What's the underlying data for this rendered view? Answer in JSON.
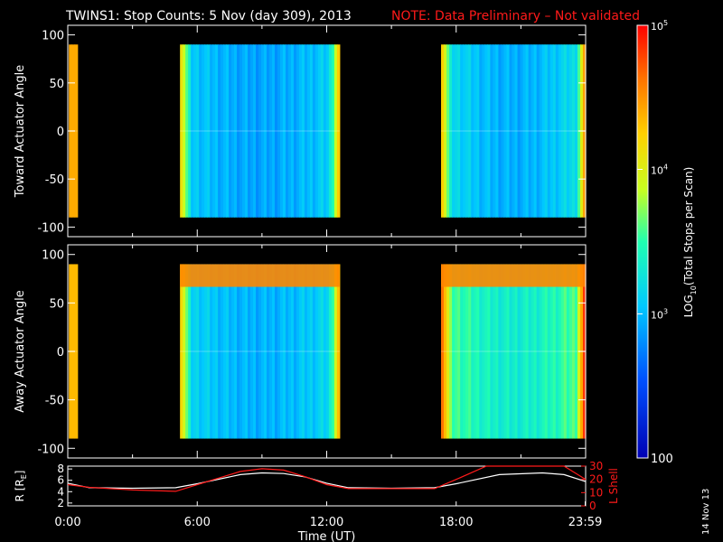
{
  "title": {
    "main": "TWINS1: Stop Counts:  5 Nov (day 309), 2013",
    "note": "NOTE: Data Preliminary – Not validated",
    "note_color": "#ff1a1a"
  },
  "stamp": "14 Nov 13",
  "chart_data": [
    {
      "type": "heatmap",
      "ylabel": "Toward Actuator Angle",
      "ylim": [
        -110,
        110
      ],
      "yticks": [
        -100,
        -50,
        0,
        50,
        100
      ],
      "xlim": [
        0,
        24
      ],
      "bands": [
        {
          "start": 0.05,
          "end": 0.45,
          "level": 0.8
        },
        {
          "start": 5.2,
          "end": 12.6,
          "level": 0.38
        },
        {
          "start": 17.3,
          "end": 24.0,
          "level": 0.42
        }
      ]
    },
    {
      "type": "heatmap",
      "ylabel": "Away Actuator Angle",
      "ylim": [
        -110,
        110
      ],
      "yticks": [
        -100,
        -50,
        0,
        50,
        100
      ],
      "xlim": [
        0,
        24
      ],
      "bands": [
        {
          "start": 0.05,
          "end": 0.45,
          "level": 0.78
        },
        {
          "start": 5.2,
          "end": 12.6,
          "level": 0.4
        },
        {
          "start": 17.3,
          "end": 24.0,
          "level": 0.55
        }
      ]
    },
    {
      "type": "line",
      "ylabel_left": "R [R",
      "ylabel_left_sub": "E",
      "ylabel_left_end": "]",
      "yticks_left": [
        2,
        4,
        6,
        8
      ],
      "ylim_left": [
        1.5,
        8.5
      ],
      "ylabel_right": "L Shell",
      "yticks_right": [
        0,
        10,
        20,
        30
      ],
      "ylim_right": [
        0,
        30
      ],
      "xlabel": "Time (UT)",
      "xtick_labels": [
        "0:00",
        "6:00",
        "12:00",
        "18:00",
        "23:59"
      ],
      "xtick_values": [
        0,
        6,
        12,
        18,
        23.98
      ],
      "series": [
        {
          "color": "#ffffff",
          "x": [
            0,
            1,
            3,
            5,
            6,
            8,
            9,
            10,
            11,
            12,
            13,
            15,
            17,
            18,
            20,
            22,
            23,
            24
          ],
          "y": [
            5.5,
            4.7,
            4.6,
            4.7,
            5.4,
            7.0,
            7.3,
            7.2,
            6.6,
            5.5,
            4.7,
            4.6,
            4.7,
            5.4,
            7.0,
            7.3,
            7.0,
            5.8
          ]
        },
        {
          "color": "#ff1a1a",
          "axis": "right",
          "x": [
            0,
            1,
            3,
            5,
            6,
            8,
            9,
            10,
            11,
            12,
            13,
            15,
            17,
            18,
            19.4,
            23,
            24
          ],
          "y": [
            16,
            14,
            12,
            11,
            16,
            26,
            28,
            27,
            22,
            16,
            13,
            13,
            13,
            20,
            31,
            31,
            20
          ]
        }
      ]
    }
  ],
  "colorbar": {
    "label_pre": "LOG",
    "label_sub": "10",
    "label_post": "(Total Stops per Scan)",
    "ticks": [
      {
        "base": "10",
        "exp": "5",
        "pos": 1.0
      },
      {
        "base": "10",
        "exp": "4",
        "pos": 0.667
      },
      {
        "base": "10",
        "exp": "3",
        "pos": 0.333
      },
      {
        "text": "100",
        "pos": 0.0
      }
    ]
  }
}
